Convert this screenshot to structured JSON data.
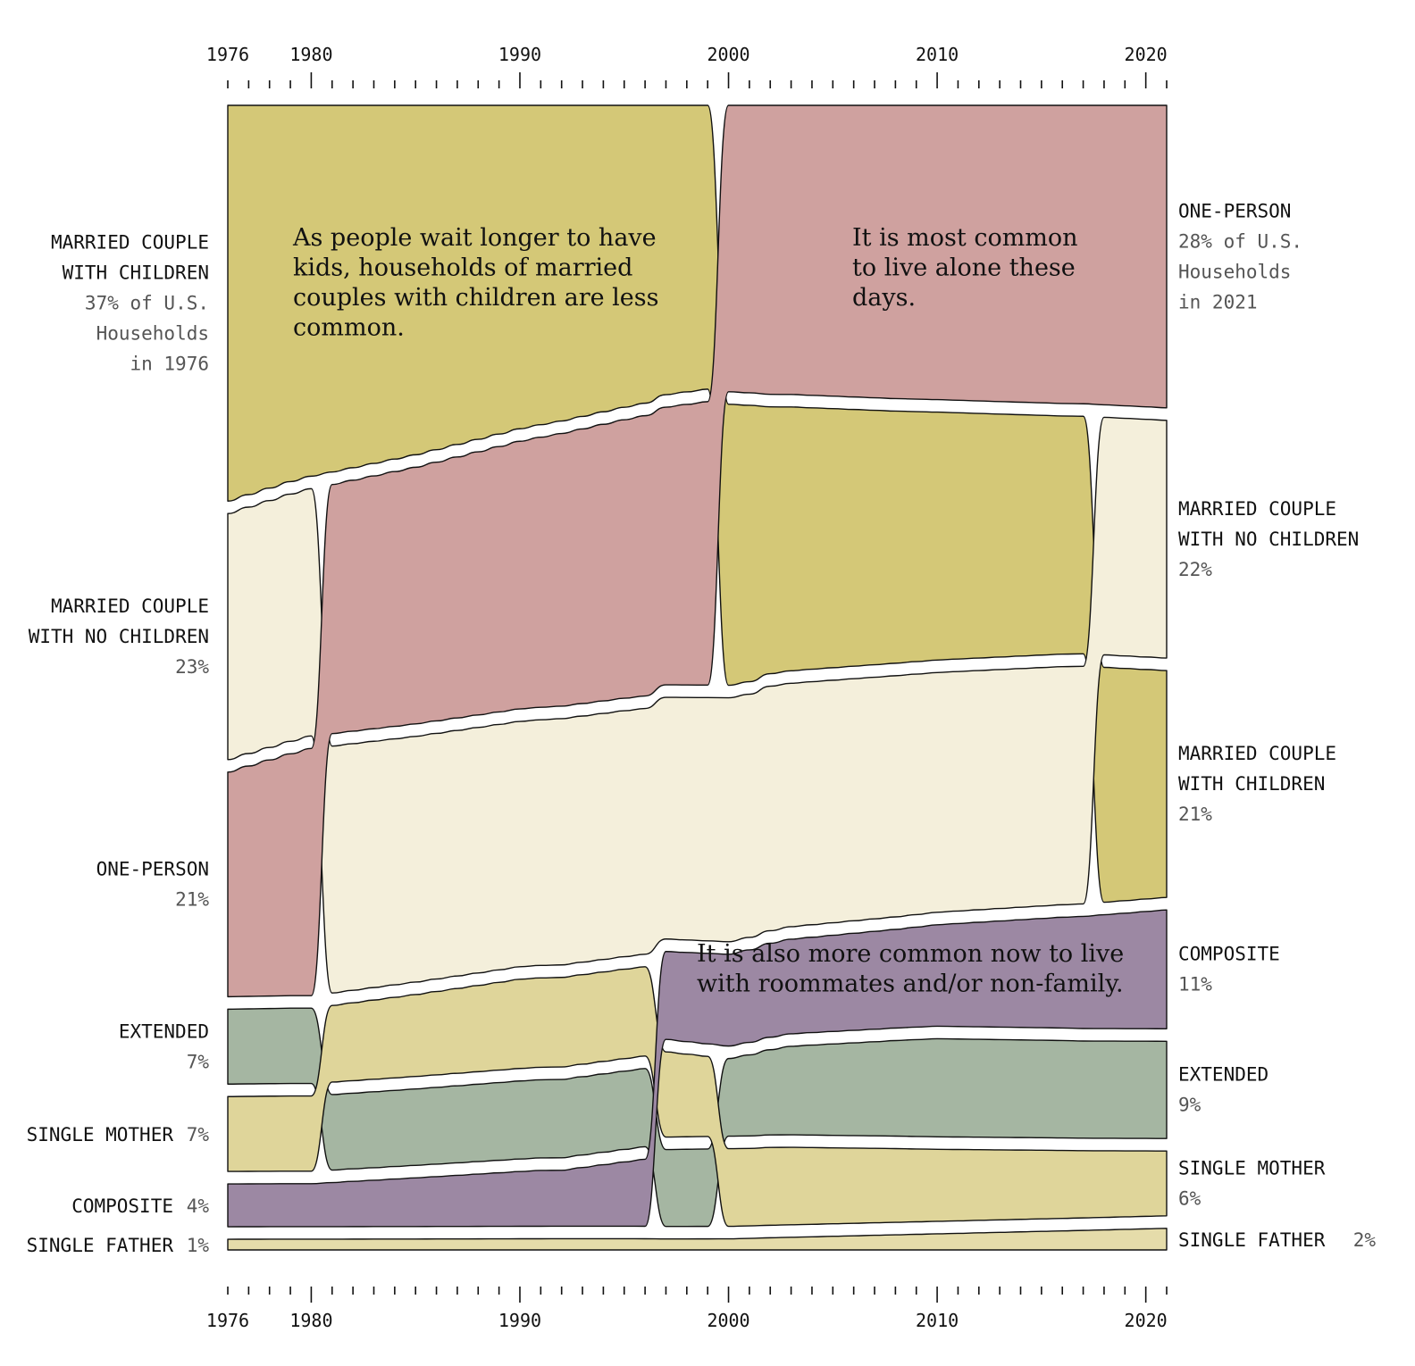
{
  "chart_data": {
    "type": "area",
    "subtype": "ranked-stream",
    "x_start": 1976,
    "x_end": 2021,
    "axis_ticks": [
      1976,
      1980,
      1990,
      2000,
      2010,
      2020
    ],
    "axis_position": "top and bottom",
    "colors": {
      "married_children": "#d4c877",
      "married_no_children": "#f4efdb",
      "one_person": "#cfa19f",
      "extended": "#a5b6a2",
      "single_mother": "#dfd59a",
      "composite": "#9c88a3",
      "single_father": "#e5dcaa",
      "outline": "#111111",
      "muted_text": "#555555"
    },
    "series": [
      {
        "key": "married_children",
        "name": "MARRIED COUPLE WITH CHILDREN",
        "color_key": "married_children",
        "values": [
          {
            "year": 1976,
            "value": 37
          },
          {
            "year": 1979,
            "value": 35
          },
          {
            "year": 1985,
            "value": 32
          },
          {
            "year": 1990,
            "value": 29
          },
          {
            "year": 1995,
            "value": 27
          },
          {
            "year": 2001,
            "value": 25
          },
          {
            "year": 2002,
            "value": 24
          },
          {
            "year": 2008,
            "value": 23
          },
          {
            "year": 2016,
            "value": 22
          },
          {
            "year": 2017,
            "value": 22
          },
          {
            "year": 2021,
            "value": 21
          }
        ]
      },
      {
        "key": "married_no_children",
        "name": "MARRIED COUPLE WITH NO CHILDREN",
        "color_key": "married_no_children",
        "values": [
          {
            "year": 1976,
            "value": 23
          },
          {
            "year": 1980,
            "value": 23
          },
          {
            "year": 1990,
            "value": 22
          },
          {
            "year": 2000,
            "value": 22
          },
          {
            "year": 2010,
            "value": 22
          },
          {
            "year": 2021,
            "value": 22
          }
        ]
      },
      {
        "key": "one_person",
        "name": "ONE-PERSON",
        "color_key": "one_person",
        "values": [
          {
            "year": 1976,
            "value": 21
          },
          {
            "year": 1980,
            "value": 23
          },
          {
            "year": 1990,
            "value": 24
          },
          {
            "year": 2001,
            "value": 26
          },
          {
            "year": 2002,
            "value": 26
          },
          {
            "year": 2010,
            "value": 27
          },
          {
            "year": 2021,
            "value": 28
          }
        ]
      },
      {
        "key": "extended",
        "name": "EXTENDED",
        "color_key": "extended",
        "values": [
          {
            "year": 1976,
            "value": 7
          },
          {
            "year": 1980,
            "value": 7
          },
          {
            "year": 1991,
            "value": 7
          },
          {
            "year": 1992,
            "value": 7
          },
          {
            "year": 2000,
            "value": 7
          },
          {
            "year": 2003,
            "value": 8
          },
          {
            "year": 2010,
            "value": 9
          },
          {
            "year": 2021,
            "value": 9
          }
        ]
      },
      {
        "key": "single_mother",
        "name": "SINGLE MOTHER",
        "color_key": "single_mother",
        "values": [
          {
            "year": 1976,
            "value": 7
          },
          {
            "year": 1980,
            "value": 7
          },
          {
            "year": 1990,
            "value": 8
          },
          {
            "year": 1996,
            "value": 8
          },
          {
            "year": 2000,
            "value": 7
          },
          {
            "year": 2003,
            "value": 7
          },
          {
            "year": 2021,
            "value": 6
          }
        ]
      },
      {
        "key": "composite",
        "name": "COMPOSITE",
        "color_key": "composite",
        "values": [
          {
            "year": 1976,
            "value": 4
          },
          {
            "year": 1980,
            "value": 4
          },
          {
            "year": 1991,
            "value": 5
          },
          {
            "year": 1992,
            "value": 5
          },
          {
            "year": 1996,
            "value": 6
          },
          {
            "year": 1997,
            "value": 8
          },
          {
            "year": 2008,
            "value": 9
          },
          {
            "year": 2021,
            "value": 11
          }
        ]
      },
      {
        "key": "single_father",
        "name": "SINGLE FATHER",
        "color_key": "single_father",
        "values": [
          {
            "year": 1976,
            "value": 1
          },
          {
            "year": 2000,
            "value": 1
          },
          {
            "year": 2021,
            "value": 2
          }
        ]
      }
    ],
    "left_labels": [
      {
        "series": "married_children",
        "lines": [
          "MARRIED COUPLE",
          "WITH CHILDREN"
        ],
        "sub": [
          "37% of U.S.",
          "Households",
          "in 1976"
        ]
      },
      {
        "series": "married_no_children",
        "lines": [
          "MARRIED COUPLE",
          "WITH NO CHILDREN"
        ],
        "sub": [
          "23%"
        ]
      },
      {
        "series": "one_person",
        "lines": [
          "ONE-PERSON"
        ],
        "sub": [
          "21%"
        ]
      },
      {
        "series": "extended",
        "lines": [
          "EXTENDED"
        ],
        "sub": [
          "7%"
        ]
      },
      {
        "series": "single_mother",
        "lines": [
          "SINGLE MOTHER"
        ],
        "inline": "7%"
      },
      {
        "series": "composite",
        "lines": [
          "COMPOSITE"
        ],
        "inline": "4%"
      },
      {
        "series": "single_father",
        "lines": [
          "SINGLE FATHER"
        ],
        "inline": "1%"
      }
    ],
    "right_labels": [
      {
        "series": "one_person",
        "lines": [
          "ONE-PERSON"
        ],
        "sub": [
          "28% of U.S.",
          "Households",
          "in 2021"
        ]
      },
      {
        "series": "married_no_children",
        "lines": [
          "MARRIED COUPLE",
          "WITH NO CHILDREN"
        ],
        "sub": [
          "22%"
        ]
      },
      {
        "series": "married_children",
        "lines": [
          "MARRIED COUPLE",
          "WITH CHILDREN"
        ],
        "sub": [
          "21%"
        ]
      },
      {
        "series": "composite",
        "lines": [
          "COMPOSITE"
        ],
        "sub": [
          "11%"
        ]
      },
      {
        "series": "extended",
        "lines": [
          "EXTENDED"
        ],
        "sub": [
          "9%"
        ]
      },
      {
        "series": "single_mother",
        "lines": [
          "SINGLE MOTHER"
        ],
        "sub": [
          "6%"
        ]
      },
      {
        "series": "single_father",
        "lines": [
          "SINGLE FATHER"
        ],
        "inline": "2%"
      }
    ],
    "annotations": [
      {
        "key": "married_children_note",
        "lines": [
          "As people wait longer to have",
          "kids, households of married",
          "couples with children are less",
          "common."
        ]
      },
      {
        "key": "one_person_note",
        "lines": [
          "It is most common",
          "to live alone these",
          "days."
        ]
      },
      {
        "key": "composite_note",
        "lines": [
          "It is also more common now to live",
          "with roommates and/or non-family."
        ]
      }
    ]
  }
}
